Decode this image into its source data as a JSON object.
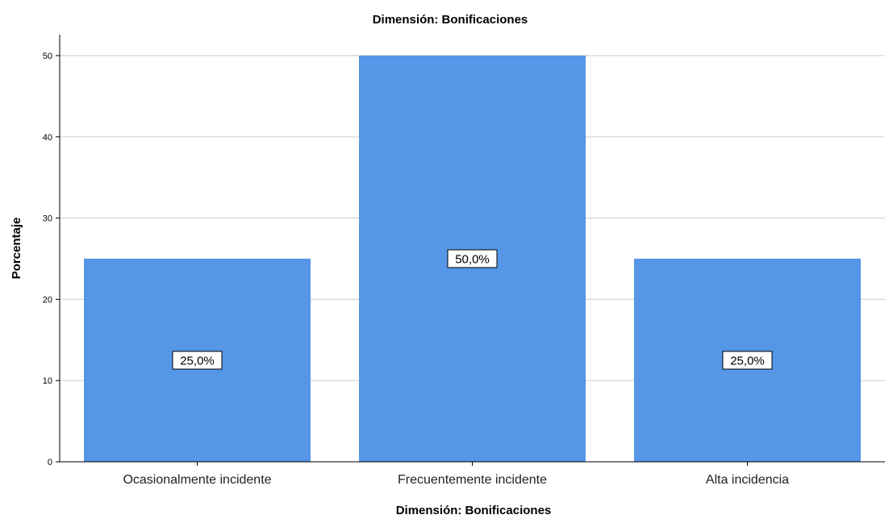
{
  "chart_data": {
    "type": "bar",
    "title": "Dimensión: Bonificaciones",
    "xlabel": "Dimensión: Bonificaciones",
    "ylabel": "Porcentaje",
    "categories": [
      "Ocasionalmente incidente",
      "Frecuentemente incidente",
      "Alta incidencia"
    ],
    "values": [
      25,
      50,
      25
    ],
    "data_labels": [
      "25,0%",
      "50,0%",
      "25,0%"
    ],
    "ylim": [
      0,
      52
    ],
    "yticks": [
      0,
      10,
      20,
      30,
      40,
      50
    ],
    "grid": true,
    "bar_color": "#5596e6",
    "grid_color": "#d3d3d3"
  }
}
